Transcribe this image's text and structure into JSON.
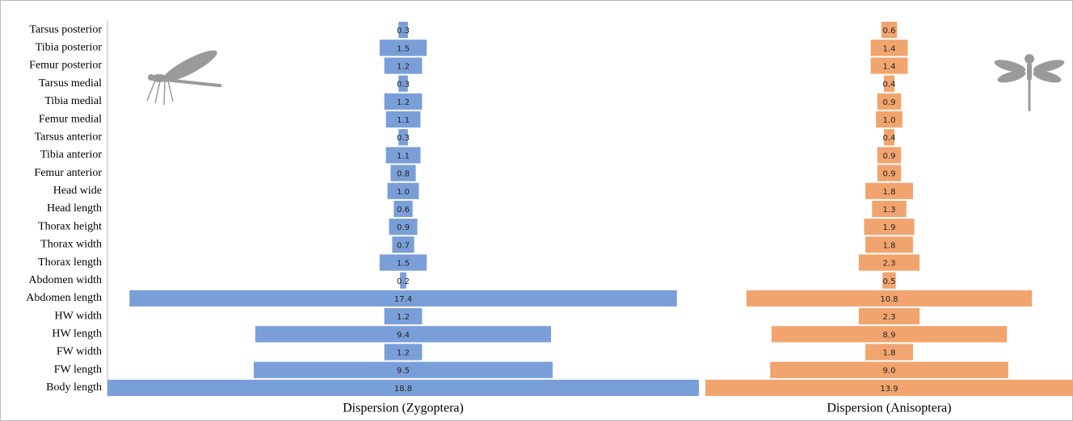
{
  "chart_data": {
    "type": "bar",
    "categories": [
      "Tarsus posterior",
      "Tibia posterior",
      "Femur posterior",
      "Tarsus medial",
      "Tibia medial",
      "Femur medial",
      "Tarsus anterior",
      "Tibia anterior",
      "Femur anterior",
      "Head wide",
      "Head length",
      "Thorax height",
      "Thorax width",
      "Thorax length",
      "Abdomen width",
      "Abdomen length",
      "HW width",
      "HW length",
      "FW width",
      "FW length",
      "Body length"
    ],
    "series": [
      {
        "name": "Dispersion (Zygoptera)",
        "color": "#7a9fd8",
        "values": [
          0.3,
          1.5,
          1.2,
          0.3,
          1.2,
          1.1,
          0.3,
          1.1,
          0.8,
          1.0,
          0.6,
          0.9,
          0.7,
          1.5,
          0.2,
          17.4,
          1.2,
          9.4,
          1.2,
          9.5,
          18.8
        ],
        "value_labels": [
          "0.3",
          "1.5",
          "1.2",
          "0.3",
          "1.2",
          "1.1",
          "0.3",
          "1.1",
          "0.8",
          "1.0",
          "0.6",
          "0.9",
          "0.7",
          "1.5",
          "0.2",
          "17.4",
          "1.2",
          "9.4",
          "1.2",
          "9.5",
          "18.8"
        ]
      },
      {
        "name": "Dispersion (Anisoptera)",
        "color": "#f2a46e",
        "values": [
          0.6,
          1.4,
          1.4,
          0.4,
          0.9,
          1.0,
          0.4,
          0.9,
          0.9,
          1.8,
          1.3,
          1.9,
          1.8,
          2.3,
          0.5,
          10.8,
          2.3,
          8.9,
          1.8,
          9.0,
          13.9
        ],
        "value_labels": [
          "0.6",
          "1.4",
          "1.4",
          "0.4",
          "0.9",
          "1.0",
          "0.4",
          "0.9",
          "0.9",
          "1.8",
          "1.3",
          "1.9",
          "1.8",
          "2.3",
          "0.5",
          "10.8",
          "2.3",
          "8.9",
          "1.8",
          "9.0",
          "13.9"
        ]
      }
    ]
  }
}
